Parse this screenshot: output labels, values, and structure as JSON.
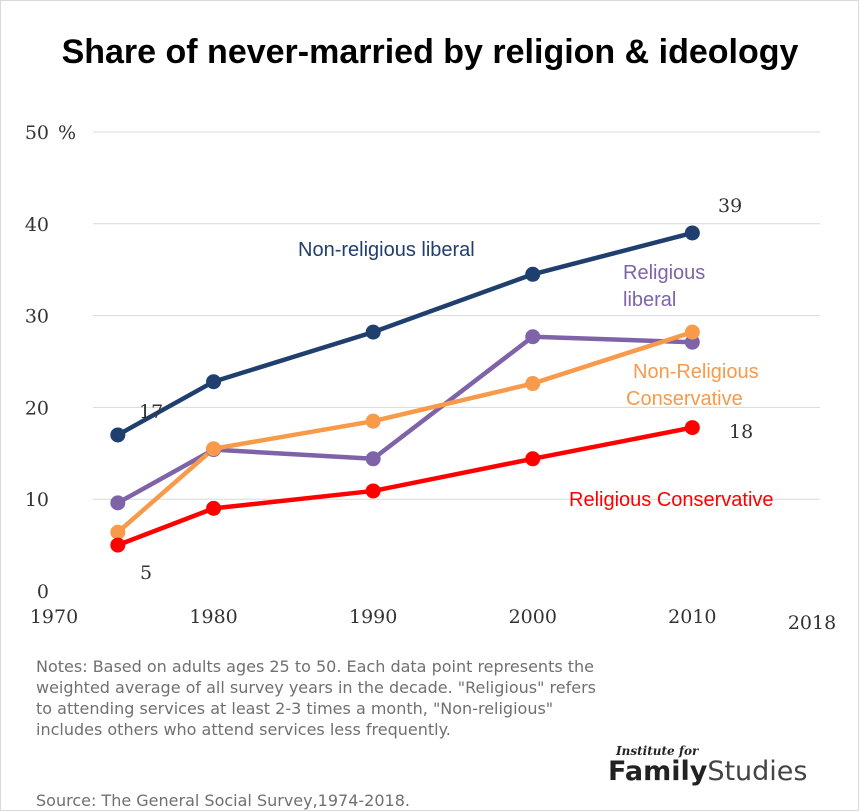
{
  "chart_data": {
    "type": "line",
    "title": "Share of never-married by religion & ideology",
    "y_unit": "%",
    "ylim": [
      0,
      50
    ],
    "y_ticks": [
      "0",
      "10",
      "20",
      "30",
      "40",
      "50"
    ],
    "xlim": [
      1970,
      2018
    ],
    "x_ticks": [
      "1970",
      "1980",
      "1990",
      "2000",
      "2010",
      "2018"
    ],
    "x": [
      1974,
      1980,
      1990,
      2000,
      2010
    ],
    "grid": "horizontal",
    "series": [
      {
        "name": "Non-religious liberal",
        "color": "#1f3f6e",
        "values": [
          17,
          22.8,
          28.2,
          34.5,
          39
        ]
      },
      {
        "name": "Religious liberal",
        "color": "#7f63a8",
        "values": [
          9.6,
          15.4,
          14.4,
          27.7,
          27.1
        ]
      },
      {
        "name": "Non-Religious Conservative",
        "color": "#f79a4a",
        "values": [
          6.4,
          15.5,
          18.5,
          22.6,
          28.2
        ]
      },
      {
        "name": "Religious Conservative",
        "color": "#ff0000",
        "values": [
          5,
          9,
          10.9,
          14.4,
          17.8
        ]
      }
    ],
    "data_labels": [
      {
        "text": "17"
      },
      {
        "text": "39"
      },
      {
        "text": "5"
      },
      {
        "text": "18"
      }
    ]
  },
  "series_labels": {
    "non_religious_liberal": "Non-religious liberal",
    "religious_liberal_line1": "Religious",
    "religious_liberal_line2": "liberal",
    "non_religious_conservative_line1": "Non-Religious",
    "non_religious_conservative_line2": "Conservative",
    "religious_conservative": "Religious Conservative"
  },
  "notes": "Notes: Based on adults ages 25 to 50. Each data point represents  the weighted average of all survey years in the decade. \"Religious\" refers to attending services at least 2-3 times a month, \"Non-religious\" includes others who attend services less frequently.",
  "source": "Source: The General Social Survey,1974-2018.",
  "logo": {
    "small": "Institute for",
    "bold": "Family",
    "light": "Studies"
  }
}
